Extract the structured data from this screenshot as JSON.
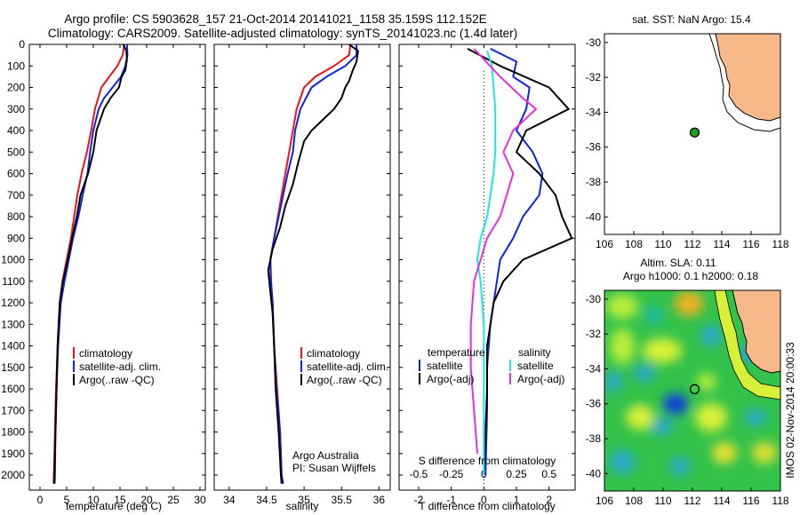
{
  "header": {
    "line1": "Argo profile: CS 5903628_157 21-Oct-2014 20141021_1158 35.159S 112.152E",
    "line2": "Climatology: CARS2009. Satellite-adjusted climatology: synTS_20141023.nc (1.4d later)"
  },
  "colors": {
    "climatology": "#e8141b",
    "satellite": "#1023e0",
    "argo": "#000000",
    "sat_s": "#1fe4e8",
    "argo_s": "#e82fe0",
    "land": "#f8b98a"
  },
  "chart_data": [
    {
      "type": "line",
      "xlabel": "temperature (deg C)",
      "xlim": [
        -2,
        31
      ],
      "xticks": [
        0,
        5,
        10,
        15,
        20,
        25,
        30
      ],
      "ylim": [
        0,
        2070
      ],
      "yticks": [
        0,
        100,
        200,
        300,
        400,
        500,
        600,
        700,
        800,
        900,
        1000,
        1100,
        1200,
        1300,
        1400,
        1500,
        1600,
        1700,
        1800,
        1900,
        2000
      ],
      "yreversed": true,
      "legend": [
        "climatology",
        "satellite-adj. clim.",
        "Argo(..raw -QC)"
      ],
      "series": [
        {
          "name": "climatology",
          "color": "#e8141b",
          "points": [
            [
              15.8,
              0
            ],
            [
              15.5,
              50
            ],
            [
              14.5,
              100
            ],
            [
              13,
              150
            ],
            [
              11.5,
              200
            ],
            [
              10.3,
              300
            ],
            [
              9.6,
              400
            ],
            [
              8.8,
              500
            ],
            [
              7.8,
              600
            ],
            [
              7.0,
              700
            ],
            [
              6.4,
              800
            ],
            [
              5.8,
              900
            ],
            [
              5.0,
              1000
            ],
            [
              4.2,
              1100
            ],
            [
              3.7,
              1200
            ],
            [
              3.3,
              1400
            ],
            [
              3.0,
              1600
            ],
            [
              2.8,
              1800
            ],
            [
              2.6,
              2000
            ],
            [
              2.55,
              2040
            ]
          ]
        },
        {
          "name": "satellite-adj. clim.",
          "color": "#1023e0",
          "points": [
            [
              16.3,
              0
            ],
            [
              16.4,
              50
            ],
            [
              16.0,
              100
            ],
            [
              15.2,
              150
            ],
            [
              13.6,
              200
            ],
            [
              12.0,
              250
            ],
            [
              11.0,
              300
            ],
            [
              10.0,
              400
            ],
            [
              9.4,
              500
            ],
            [
              8.9,
              600
            ],
            [
              8.0,
              700
            ],
            [
              7.2,
              800
            ],
            [
              6.2,
              900
            ],
            [
              5.4,
              1000
            ],
            [
              4.6,
              1100
            ],
            [
              3.9,
              1200
            ],
            [
              3.4,
              1400
            ],
            [
              3.1,
              1600
            ],
            [
              2.9,
              1800
            ],
            [
              2.8,
              2000
            ],
            [
              2.75,
              2040
            ]
          ]
        },
        {
          "name": "Argo(..raw -QC)",
          "color": "#000000",
          "points": [
            [
              15.6,
              0
            ],
            [
              16.2,
              30
            ],
            [
              16.3,
              70
            ],
            [
              16.0,
              120
            ],
            [
              15.3,
              150
            ],
            [
              14.8,
              200
            ],
            [
              13.2,
              250
            ],
            [
              12.0,
              300
            ],
            [
              10.6,
              400
            ],
            [
              10.0,
              500
            ],
            [
              9.0,
              600
            ],
            [
              8.3,
              650
            ],
            [
              7.6,
              700
            ],
            [
              6.9,
              800
            ],
            [
              6.0,
              900
            ],
            [
              5.2,
              1000
            ],
            [
              4.3,
              1100
            ],
            [
              3.7,
              1200
            ],
            [
              3.3,
              1400
            ],
            [
              3.1,
              1600
            ],
            [
              2.9,
              1800
            ],
            [
              2.7,
              2000
            ],
            [
              2.65,
              2040
            ]
          ]
        }
      ]
    },
    {
      "type": "line",
      "xlabel": "salinity",
      "xlim": [
        33.8,
        36.15
      ],
      "xticks": [
        34,
        34.5,
        35,
        35.5,
        36
      ],
      "ylim": [
        0,
        2070
      ],
      "yreversed": true,
      "legend": [
        "climatology",
        "satellite-adj. clim.",
        "Argo(..raw -QC)"
      ],
      "annotation": [
        "Argo Australia",
        "PI: Susan Wijffels"
      ],
      "series": [
        {
          "name": "climatology",
          "color": "#e8141b",
          "points": [
            [
              35.62,
              0
            ],
            [
              35.6,
              50
            ],
            [
              35.4,
              100
            ],
            [
              35.15,
              150
            ],
            [
              35.0,
              200
            ],
            [
              34.9,
              300
            ],
            [
              34.85,
              400
            ],
            [
              34.8,
              500
            ],
            [
              34.75,
              600
            ],
            [
              34.7,
              700
            ],
            [
              34.65,
              800
            ],
            [
              34.6,
              900
            ],
            [
              34.55,
              1000
            ],
            [
              34.55,
              1100
            ],
            [
              34.58,
              1200
            ],
            [
              34.6,
              1400
            ],
            [
              34.64,
              1600
            ],
            [
              34.68,
              1800
            ],
            [
              34.7,
              2000
            ],
            [
              34.72,
              2040
            ]
          ]
        },
        {
          "name": "satellite-adj. clim.",
          "color": "#1023e0",
          "points": [
            [
              35.7,
              0
            ],
            [
              35.7,
              50
            ],
            [
              35.55,
              100
            ],
            [
              35.3,
              150
            ],
            [
              35.1,
              200
            ],
            [
              34.95,
              300
            ],
            [
              34.88,
              400
            ],
            [
              34.85,
              500
            ],
            [
              34.78,
              600
            ],
            [
              34.72,
              700
            ],
            [
              34.66,
              800
            ],
            [
              34.6,
              900
            ],
            [
              34.55,
              1000
            ],
            [
              34.56,
              1100
            ],
            [
              34.58,
              1200
            ],
            [
              34.6,
              1400
            ],
            [
              34.63,
              1600
            ],
            [
              34.68,
              1800
            ],
            [
              34.7,
              2000
            ],
            [
              34.72,
              2040
            ]
          ]
        },
        {
          "name": "Argo(..raw -QC)",
          "color": "#000000",
          "points": [
            [
              35.6,
              0
            ],
            [
              35.72,
              30
            ],
            [
              35.7,
              80
            ],
            [
              35.65,
              120
            ],
            [
              35.6,
              170
            ],
            [
              35.55,
              200
            ],
            [
              35.5,
              250
            ],
            [
              35.4,
              300
            ],
            [
              35.25,
              350
            ],
            [
              35.1,
              400
            ],
            [
              35.0,
              450
            ],
            [
              34.92,
              550
            ],
            [
              34.85,
              650
            ],
            [
              34.75,
              750
            ],
            [
              34.68,
              850
            ],
            [
              34.58,
              950
            ],
            [
              34.52,
              1050
            ],
            [
              34.55,
              1150
            ],
            [
              34.58,
              1250
            ],
            [
              34.6,
              1400
            ],
            [
              34.62,
              1600
            ],
            [
              34.66,
              1800
            ],
            [
              34.69,
              2000
            ],
            [
              34.7,
              2040
            ]
          ]
        }
      ]
    },
    {
      "type": "line",
      "xlabel": "T difference from climatology",
      "xlim": [
        -2.6,
        2.8
      ],
      "xticks": [
        -2,
        -1,
        0,
        1,
        2
      ],
      "top_label": "S difference from climatology",
      "top_ticks": [
        -0.5,
        -0.25,
        0,
        0.25,
        0.5
      ],
      "ylim": [
        0,
        2070
      ],
      "yreversed": true,
      "legend_headers": [
        "temperature",
        "salinity"
      ],
      "legend": [
        "satellite",
        "Argo(-adj)",
        "satellite",
        "Argo(-adj)"
      ],
      "series": [
        {
          "name": "temperature satellite",
          "color": "#1023e0",
          "points": [
            [
              0.2,
              20
            ],
            [
              1.0,
              80
            ],
            [
              0.9,
              150
            ],
            [
              1.4,
              200
            ],
            [
              1.3,
              300
            ],
            [
              1.0,
              400
            ],
            [
              1.5,
              500
            ],
            [
              1.8,
              600
            ],
            [
              1.7,
              700
            ],
            [
              1.2,
              800
            ],
            [
              0.9,
              900
            ],
            [
              0.5,
              1000
            ],
            [
              0.4,
              1100
            ],
            [
              0.2,
              1300
            ],
            [
              0.1,
              1500
            ],
            [
              0.1,
              1700
            ],
            [
              0.05,
              2000
            ]
          ]
        },
        {
          "name": "temperature Argo(-adj)",
          "color": "#000000",
          "points": [
            [
              -0.5,
              20
            ],
            [
              0.5,
              100
            ],
            [
              2.0,
              200
            ],
            [
              2.6,
              300
            ],
            [
              1.3,
              400
            ],
            [
              1.0,
              500
            ],
            [
              1.7,
              600
            ],
            [
              2.2,
              700
            ],
            [
              2.4,
              800
            ],
            [
              2.7,
              900
            ],
            [
              1.2,
              1000
            ],
            [
              0.6,
              1100
            ],
            [
              0.3,
              1200
            ],
            [
              0.1,
              1400
            ],
            [
              0.1,
              1600
            ],
            [
              0.05,
              1800
            ],
            [
              0.0,
              2000
            ]
          ]
        },
        {
          "name": "salinity satellite",
          "color": "#1fe4e8",
          "points": [
            [
              0.1,
              30
            ],
            [
              0.25,
              100
            ],
            [
              0.35,
              300
            ],
            [
              0.35,
              500
            ],
            [
              0.3,
              600
            ],
            [
              0.2,
              700
            ],
            [
              0.1,
              800
            ],
            [
              -0.1,
              900
            ],
            [
              -0.2,
              1000
            ],
            [
              -0.1,
              1100
            ],
            [
              0.0,
              1300
            ],
            [
              0.0,
              1500
            ],
            [
              0.0,
              1700
            ],
            [
              0.0,
              2000
            ]
          ]
        },
        {
          "name": "salinity Argo(-adj)",
          "color": "#e82fe0",
          "points": [
            [
              -0.3,
              20
            ],
            [
              0.5,
              150
            ],
            [
              1.2,
              250
            ],
            [
              1.6,
              300
            ],
            [
              0.9,
              400
            ],
            [
              0.6,
              500
            ],
            [
              0.9,
              600
            ],
            [
              0.7,
              700
            ],
            [
              0.5,
              800
            ],
            [
              0.1,
              900
            ],
            [
              -0.3,
              1100
            ],
            [
              -0.4,
              1300
            ],
            [
              -0.4,
              1500
            ],
            [
              -0.3,
              1700
            ],
            [
              -0.2,
              1900
            ]
          ]
        }
      ]
    },
    {
      "type": "scatter",
      "title": "sat. SST: NaN Argo: 15.4",
      "xlim": [
        106,
        118
      ],
      "xticks": [
        106,
        108,
        110,
        112,
        114,
        116,
        118
      ],
      "ylim": [
        -41,
        -29.5
      ],
      "yticks": [
        -30,
        -32,
        -34,
        -36,
        -38,
        -40
      ],
      "points": [
        {
          "lon": 112.15,
          "lat": -35.16
        }
      ]
    },
    {
      "type": "heatmap",
      "title_line1": "Altim. SLA: 0.11",
      "title_line2": "Argo h1000: 0.1 h2000: 0.18",
      "xlim": [
        106,
        118
      ],
      "xticks": [
        106,
        108,
        110,
        112,
        114,
        116,
        118
      ],
      "ylim": [
        -41,
        -29.5
      ],
      "yticks": [
        -30,
        -32,
        -34,
        -36,
        -38,
        -40
      ],
      "points": [
        {
          "lon": 112.15,
          "lat": -35.16
        }
      ]
    }
  ],
  "footer": {
    "stamp": "IMOS 02-Nov-2014 20:00:33"
  }
}
